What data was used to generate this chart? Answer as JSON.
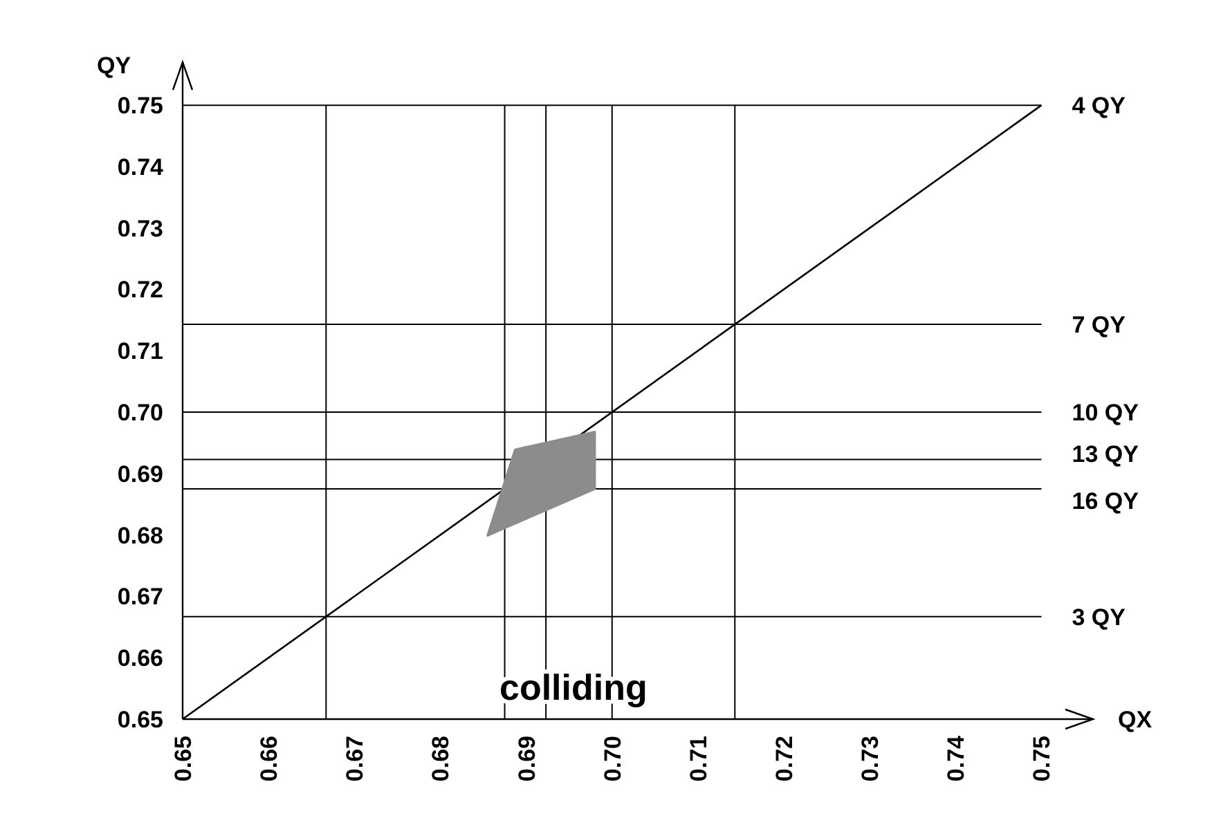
{
  "chart_data": {
    "type": "line",
    "xlabel": "QX",
    "ylabel": "QY",
    "xlim": [
      0.65,
      0.756
    ],
    "ylim": [
      0.65,
      0.757
    ],
    "xticks": [
      0.65,
      0.66,
      0.67,
      0.68,
      0.69,
      {
        "value": 0.7,
        "label": "0.70"
      },
      0.71,
      0.72,
      0.73,
      0.74,
      0.75
    ],
    "yticks": [
      0.65,
      0.66,
      0.67,
      0.68,
      0.69,
      {
        "value": 0.7,
        "label": "0.70"
      },
      0.71,
      0.72,
      0.73,
      0.74,
      0.75
    ],
    "grid": false,
    "marker": "none",
    "line_style": "solid",
    "series": [
      {
        "type": "line",
        "color": "#000000",
        "x": [
          0.65,
          0.75
        ],
        "values": [
          0.65,
          0.75
        ]
      },
      {
        "type": "area",
        "color": "#8c8c8c",
        "x": [
          0.6855,
          0.6887,
          0.698,
          0.698,
          0.6855
        ],
        "values": [
          0.6799,
          0.6939,
          0.6968,
          0.6875,
          0.6799
        ]
      }
    ],
    "ref_lines": [
      {
        "axis": "y",
        "value": 0.75,
        "label": "4 QY"
      },
      {
        "axis": "y",
        "value": 0.7143,
        "label": "7 QY"
      },
      {
        "axis": "y",
        "value": 0.7,
        "label": "10 QY"
      },
      {
        "axis": "y",
        "value": 0.6923,
        "label": "13 QY"
      },
      {
        "axis": "y",
        "value": 0.6875,
        "label": "16 QY"
      },
      {
        "axis": "y",
        "value": 0.6667,
        "label": "3 QY"
      },
      {
        "axis": "x",
        "value": 0.6667
      },
      {
        "axis": "x",
        "value": 0.6875
      },
      {
        "axis": "x",
        "value": 0.6923
      },
      {
        "axis": "x",
        "value": 0.7
      },
      {
        "axis": "x",
        "value": 0.7143
      }
    ],
    "annotations": [
      "colliding"
    ]
  }
}
